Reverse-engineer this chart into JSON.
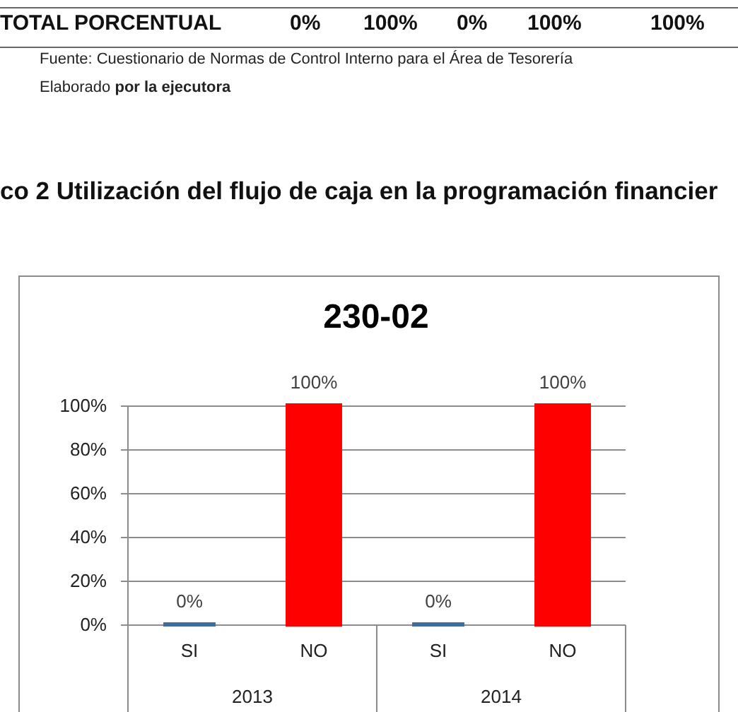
{
  "chart_data": {
    "type": "bar",
    "title": "230-02",
    "annotations": [
      "TOTAL PORCENTUAL",
      "0%",
      "100%",
      "0%",
      "100%",
      "100%",
      "Fuente: Cuestionario de Normas de Control Interno para el Área de Tesorería",
      "Elaborado",
      "por la ejecutora",
      "co 2 Utilización del flujo de caja en la programación financier"
    ],
    "categories": [
      "2013",
      "2014"
    ],
    "series": [
      {
        "name": "SI",
        "color": "#3f6ba0",
        "values": [
          0,
          0
        ],
        "value_labels": [
          "0%",
          "0%"
        ]
      },
      {
        "name": "NO",
        "color": "#ff0000",
        "values": [
          100,
          100
        ],
        "value_labels": [
          "100%",
          "100%"
        ]
      }
    ],
    "ylim": [
      0,
      100
    ],
    "yticks": [
      {
        "value": 0,
        "label": "0%"
      },
      {
        "value": 20,
        "label": "20%"
      },
      {
        "value": 40,
        "label": "40%"
      },
      {
        "value": 60,
        "label": "60%"
      },
      {
        "value": 80,
        "label": "80%"
      },
      {
        "value": 100,
        "label": "100%"
      }
    ],
    "grid": true
  }
}
